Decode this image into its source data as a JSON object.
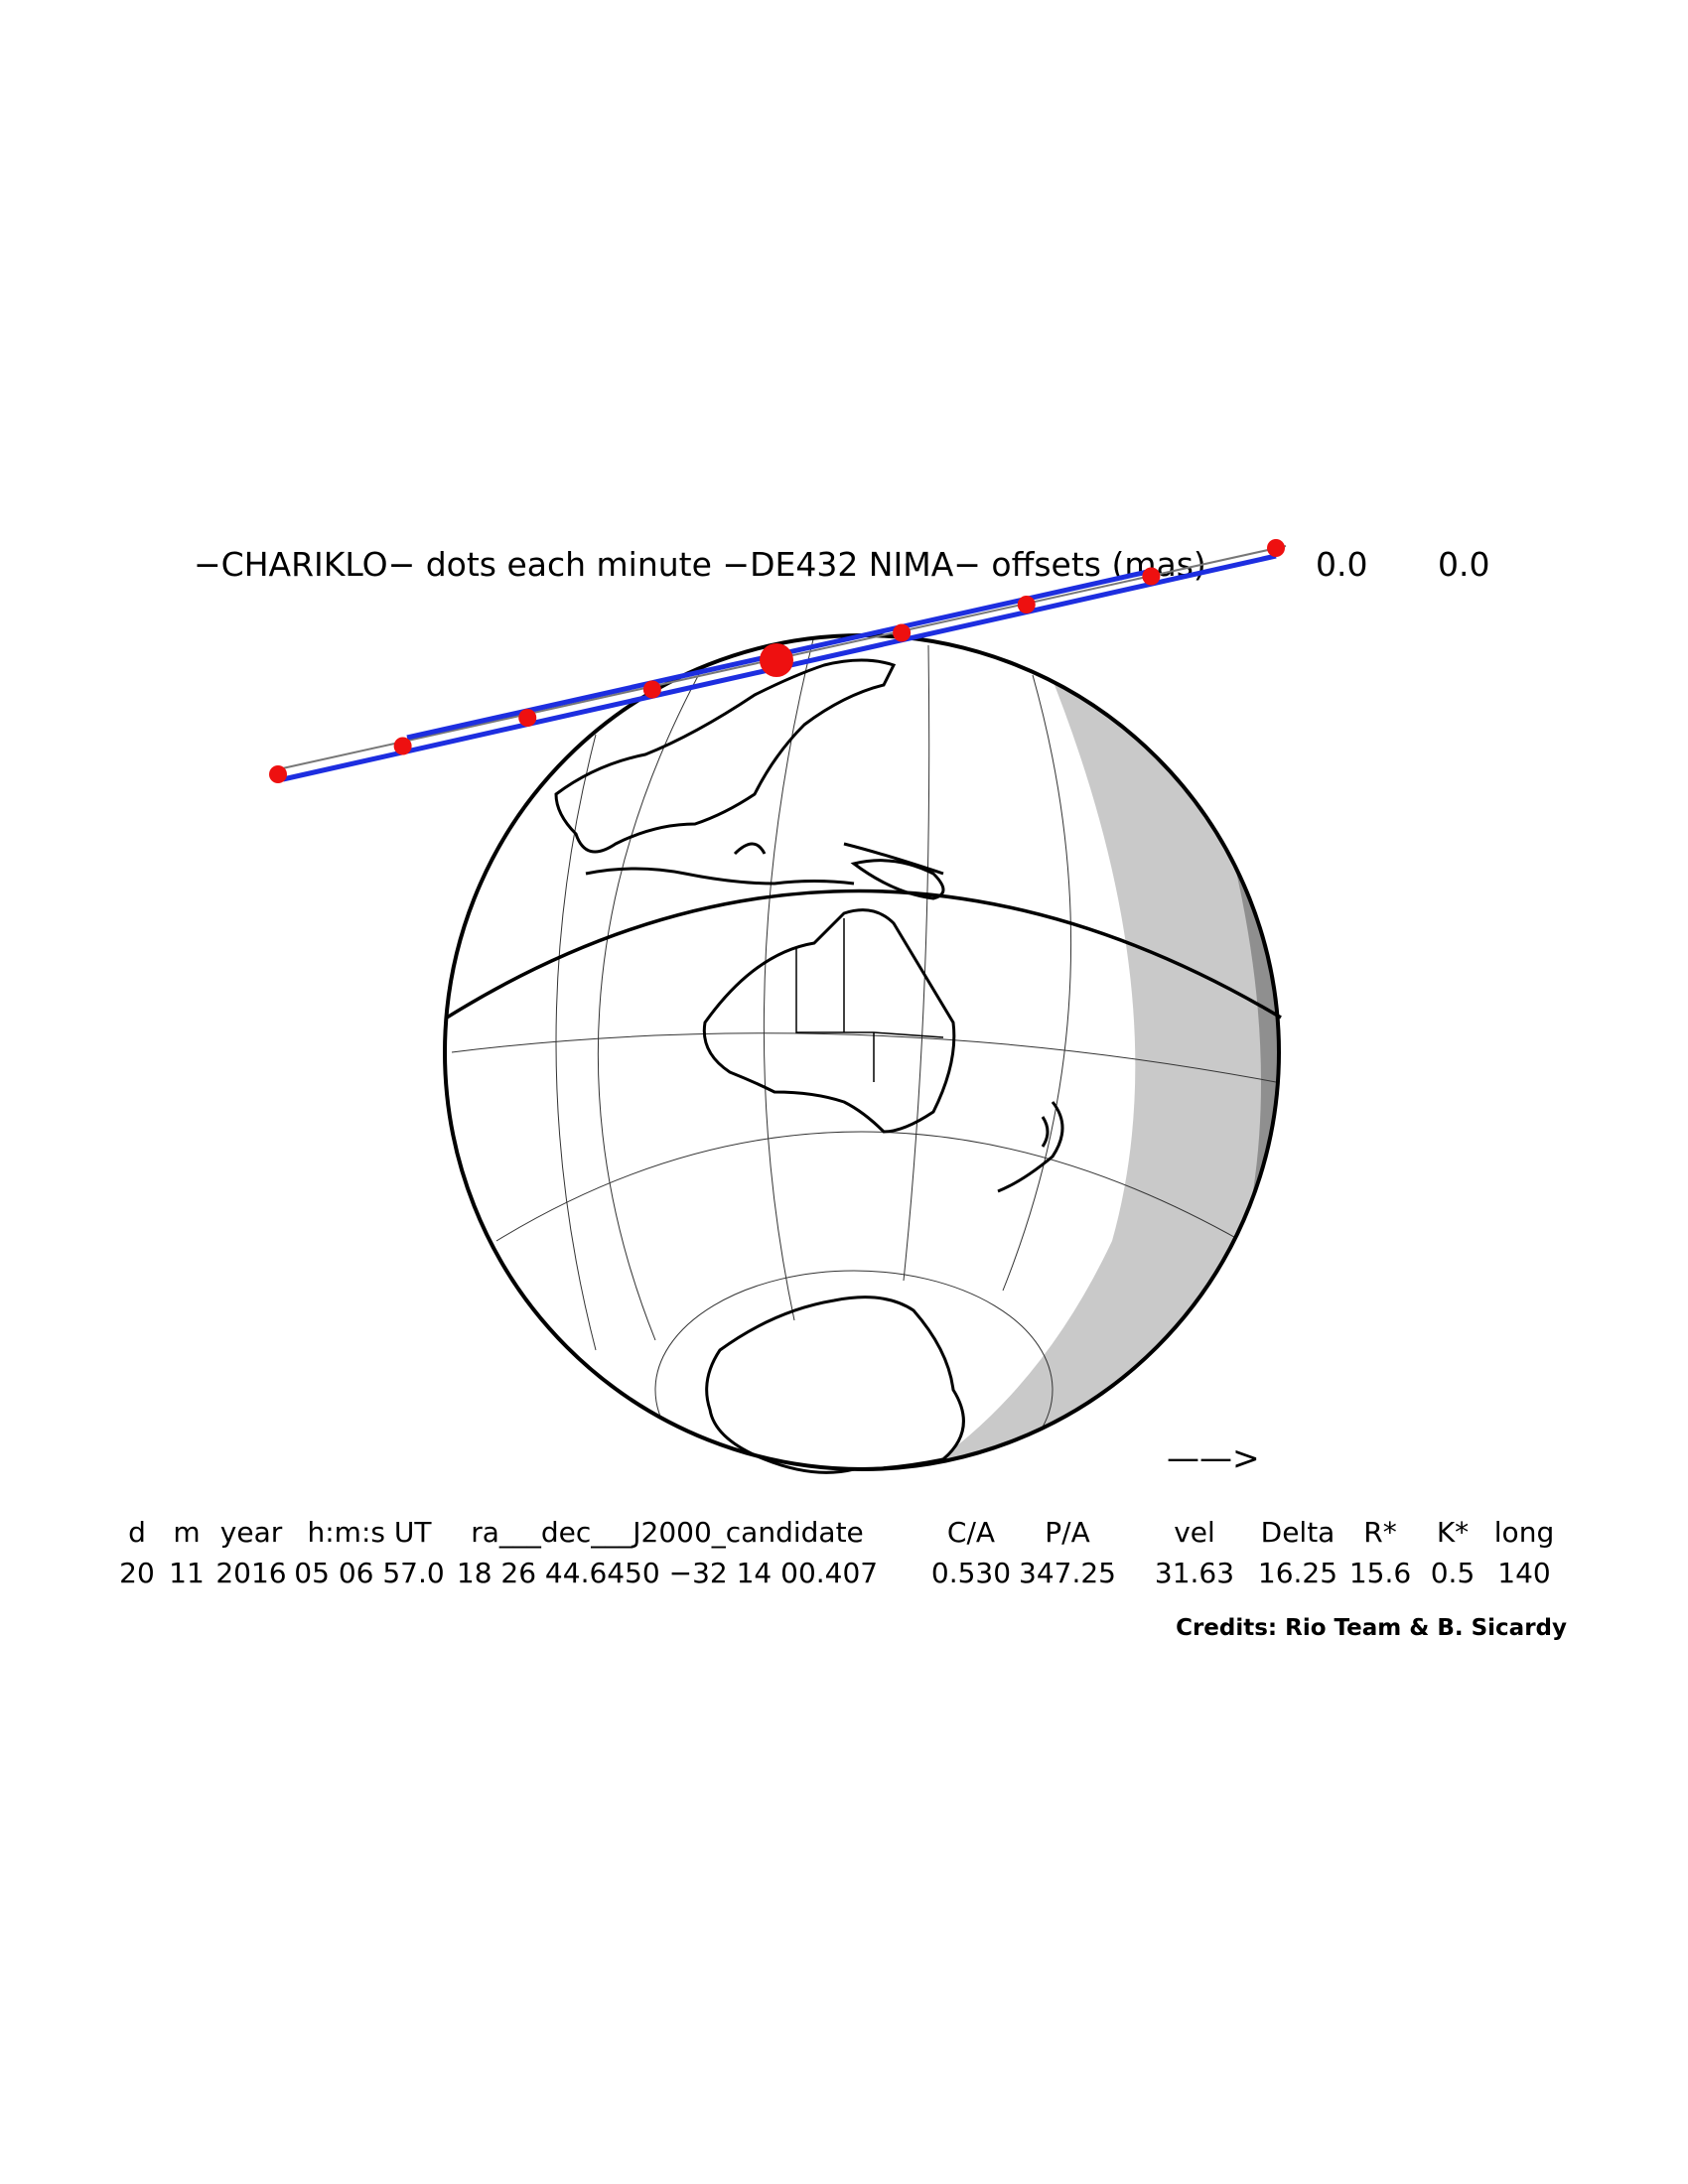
{
  "title": {
    "text": "−CHARIKLO− dots each minute −DE432 NIMA− offsets (mas)",
    "offset_ra": "0.0",
    "offset_dec": "0.0"
  },
  "direction_arrow": "——>",
  "table": {
    "headers": [
      "d",
      "m",
      "year",
      "h:m:s UT",
      "ra___dec___J2000_candidate",
      "C/A",
      "P/A",
      "vel",
      "Delta",
      "R*",
      "K*",
      "long"
    ],
    "values": [
      "20",
      "11",
      "2016",
      "05 06 57.0",
      "18 26 44.6450 −32 14 00.407",
      "0.530",
      "347.25",
      "31.63",
      "16.25",
      "15.6",
      "0.5",
      "140"
    ]
  },
  "credits": "Credits: Rio Team & B. Sicardy",
  "colors": {
    "path_limits": "#1d2ee0",
    "minute_dots": "#ee1010",
    "night_side": "#c9c9c9",
    "deep_night": "#8f8f8f",
    "globe_outline": "#000000",
    "graticule": "#333333"
  },
  "dot_interval": "each minute",
  "dot_count": 9,
  "central_time_marker": "05 06 57.0"
}
